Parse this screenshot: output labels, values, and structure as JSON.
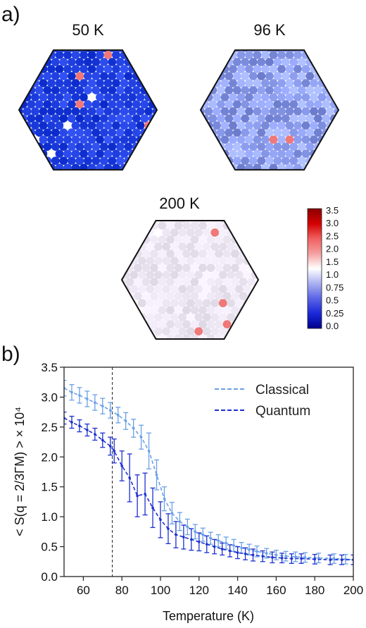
{
  "panels": {
    "a_label": "a)",
    "b_label": "b)"
  },
  "maps": [
    {
      "title": "50 K",
      "tint": "#1f3fe0",
      "variance": 0.18
    },
    {
      "title": "96 K",
      "tint": "#8f9ff0",
      "variance": 0.3
    },
    {
      "title": "200 K",
      "tint": "#ece7f3",
      "variance": 0.12
    }
  ],
  "colorbar": {
    "ticks": [
      "3.5",
      "3.0",
      "2.5",
      "2.0",
      "1.5",
      "1.0",
      "0.75",
      "0.5",
      "0.25",
      "0.0"
    ],
    "colors": [
      "#8b0000",
      "#d40000",
      "#f06060",
      "#f4a0a0",
      "#ffffff",
      "#aab0f0",
      "#5a64e6",
      "#1a28d8",
      "#00008b"
    ]
  },
  "chart_data": {
    "type": "line",
    "xlabel": "Temperature (K)",
    "ylabel": "< S(q = 2/3ΓM) > × 10⁴",
    "xlim": [
      50,
      200
    ],
    "ylim": [
      0.0,
      3.5
    ],
    "xticks": [
      60,
      80,
      100,
      120,
      140,
      160,
      180,
      200
    ],
    "yticks": [
      "0.0",
      "0.5",
      "1.0",
      "1.5",
      "2.0",
      "2.5",
      "3.0",
      "3.5"
    ],
    "vline_x": 75,
    "legend_position": "top-right",
    "series": [
      {
        "name": "Classical",
        "color": "#6aa0e6",
        "x": [
          50,
          54,
          58,
          62,
          66,
          70,
          74,
          78,
          82,
          86,
          90,
          94,
          98,
          102,
          106,
          110,
          114,
          118,
          122,
          126,
          130,
          134,
          138,
          142,
          146,
          150,
          155,
          160,
          165,
          170,
          175,
          182,
          190,
          196,
          200
        ],
        "y": [
          3.15,
          3.08,
          3.03,
          2.97,
          2.91,
          2.85,
          2.78,
          2.7,
          2.6,
          2.48,
          2.33,
          2.1,
          1.7,
          1.3,
          1.06,
          0.92,
          0.83,
          0.75,
          0.7,
          0.64,
          0.6,
          0.56,
          0.52,
          0.48,
          0.45,
          0.42,
          0.39,
          0.36,
          0.34,
          0.33,
          0.32,
          0.31,
          0.3,
          0.29,
          0.28
        ],
        "err": [
          0.13,
          0.13,
          0.13,
          0.13,
          0.13,
          0.13,
          0.13,
          0.13,
          0.14,
          0.15,
          0.2,
          0.3,
          0.25,
          0.2,
          0.18,
          0.15,
          0.13,
          0.12,
          0.11,
          0.1,
          0.1,
          0.1,
          0.1,
          0.09,
          0.09,
          0.09,
          0.08,
          0.08,
          0.08,
          0.08,
          0.08,
          0.08,
          0.08,
          0.08,
          0.08
        ]
      },
      {
        "name": "Quantum",
        "color": "#1c2fd0",
        "x": [
          50,
          54,
          58,
          62,
          66,
          70,
          74,
          76,
          80,
          84,
          88,
          92,
          96,
          100,
          104,
          108,
          112,
          116,
          120,
          124,
          128,
          132,
          136,
          140,
          144,
          148,
          153,
          158,
          163,
          168,
          173,
          180,
          188,
          194,
          200
        ],
        "y": [
          2.65,
          2.58,
          2.52,
          2.45,
          2.38,
          2.28,
          2.18,
          2.1,
          1.85,
          1.65,
          1.35,
          1.38,
          1.15,
          0.95,
          0.8,
          0.7,
          0.66,
          0.62,
          0.58,
          0.54,
          0.5,
          0.46,
          0.43,
          0.4,
          0.38,
          0.36,
          0.34,
          0.32,
          0.31,
          0.3,
          0.3,
          0.29,
          0.28,
          0.28,
          0.28
        ],
        "err": [
          0.1,
          0.1,
          0.1,
          0.1,
          0.1,
          0.12,
          0.15,
          0.2,
          0.25,
          0.4,
          0.35,
          0.35,
          0.33,
          0.3,
          0.25,
          0.22,
          0.2,
          0.18,
          0.15,
          0.14,
          0.12,
          0.1,
          0.1,
          0.1,
          0.1,
          0.1,
          0.09,
          0.09,
          0.08,
          0.08,
          0.08,
          0.08,
          0.08,
          0.08,
          0.08
        ]
      }
    ]
  }
}
